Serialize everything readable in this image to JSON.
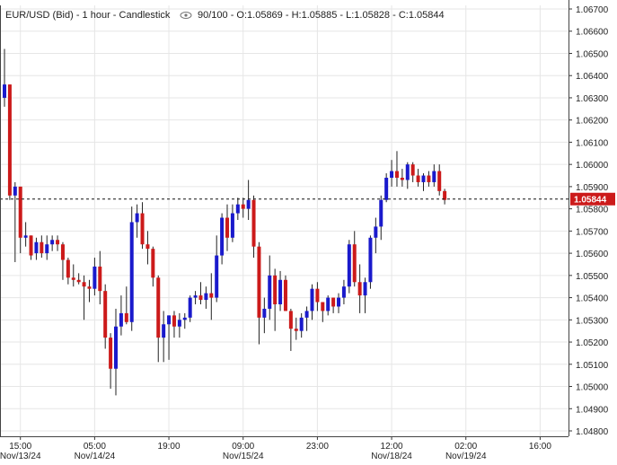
{
  "header": {
    "symbol_text": "EUR/USD (Bid) - 1 hour - Candlestick",
    "eye_icon": "eye-icon",
    "ohlc_text": "90/100 - O:1.05869 - H:1.05885 - L:1.05828 - C:1.05844"
  },
  "colors": {
    "up": "#1a1acc",
    "down": "#cc1a1a",
    "wick": "#222222",
    "grid": "#e6e6e6",
    "price_tag_bg": "#cc1a1a"
  },
  "chart_data": {
    "type": "candlestick",
    "ylim": [
      1.048,
      1.067
    ],
    "y_ticks": [
      "1.06700",
      "1.06600",
      "1.06500",
      "1.06400",
      "1.06300",
      "1.06200",
      "1.06100",
      "1.06000",
      "1.05900",
      "1.05800",
      "1.05700",
      "1.05600",
      "1.05500",
      "1.05400",
      "1.05300",
      "1.05200",
      "1.05100",
      "1.05000",
      "1.04900",
      "1.04800"
    ],
    "x_ticks": [
      {
        "label": "15:00",
        "date": "Nov/13/24",
        "index": 3
      },
      {
        "label": "05:00",
        "date": "Nov/14/24",
        "index": 17
      },
      {
        "label": "19:00",
        "date": "",
        "index": 31
      },
      {
        "label": "09:00",
        "date": "Nov/15/24",
        "index": 45
      },
      {
        "label": "23:00",
        "date": "",
        "index": 59
      },
      {
        "label": "12:00",
        "date": "Nov/18/24",
        "index": 73
      },
      {
        "label": "02:00",
        "date": "Nov/19/24",
        "index": 87
      },
      {
        "label": "16:00",
        "date": "",
        "index": 101
      }
    ],
    "last_price": 1.05844,
    "last_price_label": "1.05844",
    "candles": [
      {
        "o": 1.063,
        "h": 1.0652,
        "l": 1.0626,
        "c": 1.0636
      },
      {
        "o": 1.0636,
        "h": 1.0636,
        "l": 1.0584,
        "c": 1.0586
      },
      {
        "o": 1.0586,
        "h": 1.0592,
        "l": 1.0556,
        "c": 1.059
      },
      {
        "o": 1.059,
        "h": 1.059,
        "l": 1.056,
        "c": 1.0567
      },
      {
        "o": 1.0567,
        "h": 1.0574,
        "l": 1.0563,
        "c": 1.0568
      },
      {
        "o": 1.0568,
        "h": 1.0568,
        "l": 1.0557,
        "c": 1.0559
      },
      {
        "o": 1.056,
        "h": 1.0567,
        "l": 1.0557,
        "c": 1.0565
      },
      {
        "o": 1.0565,
        "h": 1.0568,
        "l": 1.0558,
        "c": 1.056
      },
      {
        "o": 1.056,
        "h": 1.0568,
        "l": 1.0557,
        "c": 1.0564
      },
      {
        "o": 1.0564,
        "h": 1.0568,
        "l": 1.0561,
        "c": 1.0566
      },
      {
        "o": 1.0566,
        "h": 1.0568,
        "l": 1.0561,
        "c": 1.0564
      },
      {
        "o": 1.0564,
        "h": 1.0565,
        "l": 1.0548,
        "c": 1.0557
      },
      {
        "o": 1.0557,
        "h": 1.0558,
        "l": 1.0546,
        "c": 1.0549
      },
      {
        "o": 1.0549,
        "h": 1.0555,
        "l": 1.0545,
        "c": 1.0548
      },
      {
        "o": 1.0548,
        "h": 1.0551,
        "l": 1.0546,
        "c": 1.0547
      },
      {
        "o": 1.0547,
        "h": 1.055,
        "l": 1.053,
        "c": 1.0545
      },
      {
        "o": 1.0545,
        "h": 1.0548,
        "l": 1.0538,
        "c": 1.0544
      },
      {
        "o": 1.0544,
        "h": 1.0558,
        "l": 1.0541,
        "c": 1.0554
      },
      {
        "o": 1.0554,
        "h": 1.0561,
        "l": 1.0537,
        "c": 1.0543
      },
      {
        "o": 1.0543,
        "h": 1.0546,
        "l": 1.0517,
        "c": 1.0522
      },
      {
        "o": 1.0522,
        "h": 1.0524,
        "l": 1.0499,
        "c": 1.0508
      },
      {
        "o": 1.0508,
        "h": 1.0535,
        "l": 1.0496,
        "c": 1.0527
      },
      {
        "o": 1.0527,
        "h": 1.0541,
        "l": 1.0523,
        "c": 1.0533
      },
      {
        "o": 1.0533,
        "h": 1.0545,
        "l": 1.0528,
        "c": 1.0529
      },
      {
        "o": 1.0529,
        "h": 1.0581,
        "l": 1.0525,
        "c": 1.0574
      },
      {
        "o": 1.0574,
        "h": 1.0582,
        "l": 1.0567,
        "c": 1.0578
      },
      {
        "o": 1.0578,
        "h": 1.0583,
        "l": 1.0562,
        "c": 1.0564
      },
      {
        "o": 1.0564,
        "h": 1.057,
        "l": 1.0555,
        "c": 1.0562
      },
      {
        "o": 1.0562,
        "h": 1.0563,
        "l": 1.0545,
        "c": 1.0549
      },
      {
        "o": 1.0549,
        "h": 1.055,
        "l": 1.0511,
        "c": 1.0522
      },
      {
        "o": 1.0522,
        "h": 1.0534,
        "l": 1.0511,
        "c": 1.0528
      },
      {
        "o": 1.0528,
        "h": 1.0532,
        "l": 1.0512,
        "c": 1.0532
      },
      {
        "o": 1.0532,
        "h": 1.0534,
        "l": 1.0522,
        "c": 1.0527
      },
      {
        "o": 1.0527,
        "h": 1.0533,
        "l": 1.0522,
        "c": 1.053
      },
      {
        "o": 1.053,
        "h": 1.0533,
        "l": 1.0526,
        "c": 1.0531
      },
      {
        "o": 1.0531,
        "h": 1.0541,
        "l": 1.0529,
        "c": 1.054
      },
      {
        "o": 1.054,
        "h": 1.0543,
        "l": 1.0537,
        "c": 1.0541
      },
      {
        "o": 1.0541,
        "h": 1.0547,
        "l": 1.0537,
        "c": 1.0539
      },
      {
        "o": 1.0539,
        "h": 1.0545,
        "l": 1.0535,
        "c": 1.0542
      },
      {
        "o": 1.0542,
        "h": 1.0551,
        "l": 1.053,
        "c": 1.054
      },
      {
        "o": 1.054,
        "h": 1.0568,
        "l": 1.0538,
        "c": 1.0559
      },
      {
        "o": 1.0559,
        "h": 1.0578,
        "l": 1.0555,
        "c": 1.0576
      },
      {
        "o": 1.0576,
        "h": 1.0582,
        "l": 1.0561,
        "c": 1.0567
      },
      {
        "o": 1.0567,
        "h": 1.0582,
        "l": 1.0565,
        "c": 1.0578
      },
      {
        "o": 1.0578,
        "h": 1.0585,
        "l": 1.0575,
        "c": 1.0582
      },
      {
        "o": 1.0582,
        "h": 1.0585,
        "l": 1.0576,
        "c": 1.058
      },
      {
        "o": 1.058,
        "h": 1.0593,
        "l": 1.0575,
        "c": 1.0584
      },
      {
        "o": 1.0584,
        "h": 1.0586,
        "l": 1.0558,
        "c": 1.0563
      },
      {
        "o": 1.0563,
        "h": 1.0565,
        "l": 1.0519,
        "c": 1.0531
      },
      {
        "o": 1.0531,
        "h": 1.054,
        "l": 1.0524,
        "c": 1.0535
      },
      {
        "o": 1.0535,
        "h": 1.0559,
        "l": 1.053,
        "c": 1.055
      },
      {
        "o": 1.055,
        "h": 1.0553,
        "l": 1.0525,
        "c": 1.0537
      },
      {
        "o": 1.0537,
        "h": 1.0552,
        "l": 1.0534,
        "c": 1.0548
      },
      {
        "o": 1.0548,
        "h": 1.055,
        "l": 1.0534,
        "c": 1.0534
      },
      {
        "o": 1.0534,
        "h": 1.0535,
        "l": 1.0516,
        "c": 1.0526
      },
      {
        "o": 1.0526,
        "h": 1.0531,
        "l": 1.0521,
        "c": 1.0525
      },
      {
        "o": 1.0525,
        "h": 1.0533,
        "l": 1.0522,
        "c": 1.0531
      },
      {
        "o": 1.0531,
        "h": 1.0536,
        "l": 1.0525,
        "c": 1.0534
      },
      {
        "o": 1.0534,
        "h": 1.0546,
        "l": 1.053,
        "c": 1.0544
      },
      {
        "o": 1.0544,
        "h": 1.0547,
        "l": 1.0534,
        "c": 1.0538
      },
      {
        "o": 1.0538,
        "h": 1.0538,
        "l": 1.0529,
        "c": 1.0534
      },
      {
        "o": 1.0534,
        "h": 1.0541,
        "l": 1.0532,
        "c": 1.054
      },
      {
        "o": 1.054,
        "h": 1.054,
        "l": 1.0533,
        "c": 1.0536
      },
      {
        "o": 1.0536,
        "h": 1.0542,
        "l": 1.0533,
        "c": 1.054
      },
      {
        "o": 1.054,
        "h": 1.0548,
        "l": 1.0537,
        "c": 1.0545
      },
      {
        "o": 1.0545,
        "h": 1.0566,
        "l": 1.0542,
        "c": 1.0564
      },
      {
        "o": 1.0564,
        "h": 1.057,
        "l": 1.0545,
        "c": 1.0547
      },
      {
        "o": 1.0547,
        "h": 1.0555,
        "l": 1.0533,
        "c": 1.0541
      },
      {
        "o": 1.0541,
        "h": 1.0549,
        "l": 1.0533,
        "c": 1.0547
      },
      {
        "o": 1.0547,
        "h": 1.0568,
        "l": 1.0544,
        "c": 1.0567
      },
      {
        "o": 1.0567,
        "h": 1.0576,
        "l": 1.056,
        "c": 1.0572
      },
      {
        "o": 1.0572,
        "h": 1.0586,
        "l": 1.0566,
        "c": 1.0584
      },
      {
        "o": 1.0584,
        "h": 1.0596,
        "l": 1.0583,
        "c": 1.0594
      },
      {
        "o": 1.0594,
        "h": 1.0602,
        "l": 1.059,
        "c": 1.0597
      },
      {
        "o": 1.0597,
        "h": 1.0606,
        "l": 1.059,
        "c": 1.0594
      },
      {
        "o": 1.0594,
        "h": 1.0598,
        "l": 1.059,
        "c": 1.0593
      },
      {
        "o": 1.0593,
        "h": 1.0601,
        "l": 1.0589,
        "c": 1.06
      },
      {
        "o": 1.06,
        "h": 1.0601,
        "l": 1.0592,
        "c": 1.0595
      },
      {
        "o": 1.0595,
        "h": 1.0598,
        "l": 1.059,
        "c": 1.0592
      },
      {
        "o": 1.0592,
        "h": 1.0596,
        "l": 1.0588,
        "c": 1.0595
      },
      {
        "o": 1.0595,
        "h": 1.0597,
        "l": 1.059,
        "c": 1.0592
      },
      {
        "o": 1.0592,
        "h": 1.06,
        "l": 1.059,
        "c": 1.0597
      },
      {
        "o": 1.0597,
        "h": 1.06,
        "l": 1.0586,
        "c": 1.0588
      },
      {
        "o": 1.0588,
        "h": 1.0589,
        "l": 1.0582,
        "c": 1.0584
      }
    ]
  }
}
